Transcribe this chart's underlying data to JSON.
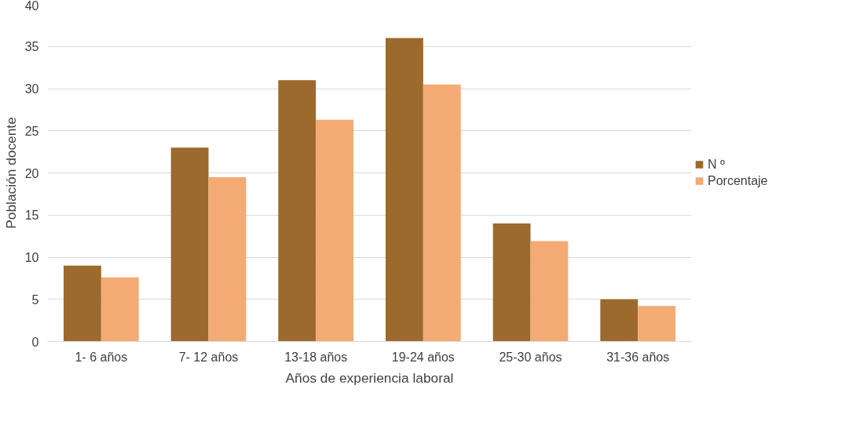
{
  "chart_data": {
    "type": "bar",
    "xlabel": "Años de experiencia laboral",
    "ylabel": "Población docente",
    "categories": [
      "1- 6 años",
      "7- 12 años",
      "13-18 años",
      "19-24 años",
      "25-30 años",
      "31-36 años"
    ],
    "series": [
      {
        "name": "N º",
        "color": "#9c6a2c",
        "values": [
          9,
          23,
          31,
          36,
          14,
          5
        ]
      },
      {
        "name": "Porcentaje",
        "color": "#f3aa73",
        "values": [
          7.6,
          19.5,
          26.3,
          30.5,
          11.9,
          4.2
        ]
      }
    ],
    "ylim": [
      0,
      40
    ],
    "yticks": [
      0,
      5,
      10,
      15,
      20,
      25,
      30,
      35,
      40
    ],
    "grid": "y",
    "legend": "right"
  }
}
